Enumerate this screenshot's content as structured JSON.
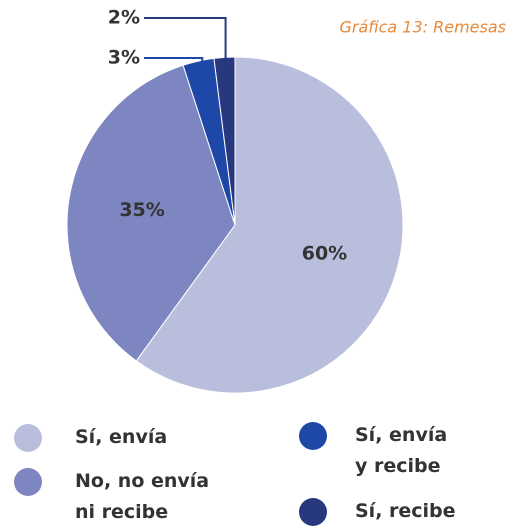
{
  "chart_data": {
    "type": "pie",
    "title": "Gráfica 13: Remesas",
    "categories": [
      "Sí, envía",
      "No, no envía ni recibe",
      "Sí, envía y recibe",
      "Sí, recibe"
    ],
    "values": [
      60,
      35,
      3,
      2
    ],
    "value_labels": [
      "60%",
      "35%",
      "3%",
      "2%"
    ],
    "colors": [
      "#b9bedd",
      "#7d86c0",
      "#1e48a8",
      "#27387e"
    ],
    "legend": "bottom"
  }
}
